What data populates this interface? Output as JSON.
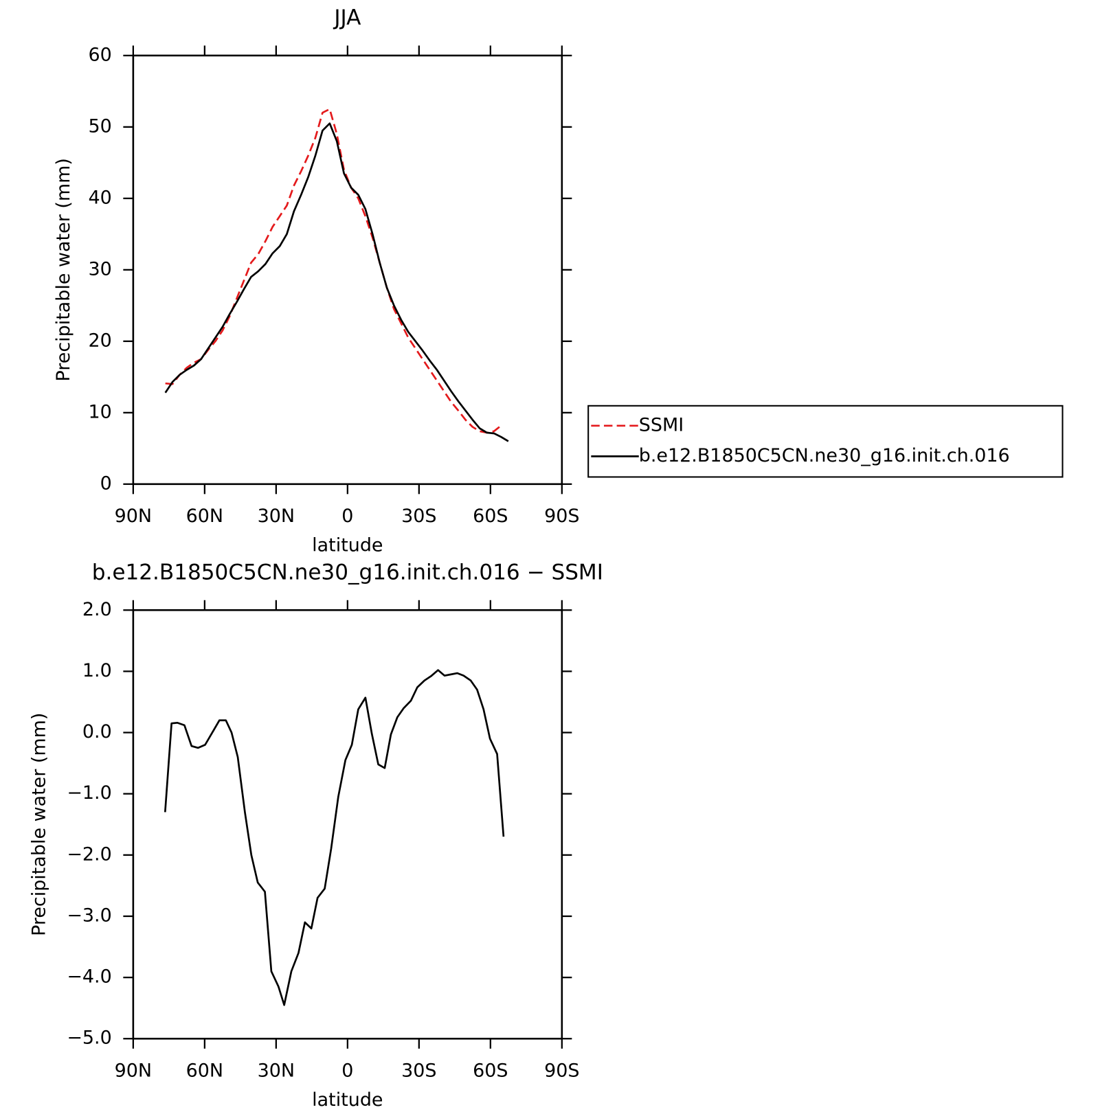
{
  "chart_data": [
    {
      "type": "line",
      "title": "JJA",
      "xlabel": "latitude",
      "ylabel": "Precipitable water (mm)",
      "x": [
        76.5,
        73.5,
        70.5,
        67.5,
        64.5,
        61.5,
        58.5,
        55.5,
        52.5,
        49.5,
        46.5,
        43.5,
        40.5,
        37.5,
        34.5,
        31.5,
        28.5,
        25.5,
        22.5,
        19.5,
        16.5,
        13.5,
        10.5,
        7.5,
        4.5,
        1.5,
        -1.5,
        -4.5,
        -7.5,
        -10.5,
        -13.5,
        -16.5,
        -19.5,
        -22.5,
        -25.5,
        -28.5,
        -31.5,
        -34.5,
        -37.5,
        -40.5,
        -43.5,
        -46.5,
        -49.5,
        -52.5,
        -55.5,
        -58.5,
        -61.5,
        -64.5,
        -67.5
      ],
      "series": [
        {
          "name": "SSMI",
          "color": "#e41a1c",
          "dashed": true,
          "values": [
            14.1,
            14.0,
            15.3,
            16.3,
            17.0,
            17.5,
            18.8,
            20.0,
            21.5,
            23.5,
            26.0,
            28.5,
            31.0,
            32.2,
            34.0,
            36.0,
            37.5,
            39.0,
            41.8,
            43.8,
            46.0,
            48.5,
            52.0,
            52.5,
            49.0,
            44.0,
            41.5,
            40.0,
            37.5,
            34.5,
            31.0,
            27.5,
            24.5,
            22.5,
            20.5,
            19.0,
            17.5,
            16.0,
            14.5,
            13.0,
            11.5,
            10.3,
            9.0,
            8.0,
            7.4,
            7.2,
            7.4,
            8.2,
            null
          ]
        },
        {
          "name": "b.e12.B1850C5CN.ne30_g16.init.ch.016",
          "color": "#000000",
          "dashed": false,
          "values": [
            12.8,
            14.3,
            15.3,
            16.0,
            16.6,
            17.5,
            19.0,
            20.5,
            22.0,
            23.8,
            25.5,
            27.3,
            29.0,
            29.8,
            30.8,
            32.3,
            33.3,
            35.0,
            38.2,
            40.5,
            43.0,
            46.0,
            49.5,
            50.5,
            48.0,
            43.5,
            41.5,
            40.5,
            38.5,
            35.0,
            31.0,
            27.5,
            25.0,
            23.0,
            21.3,
            20.0,
            18.7,
            17.3,
            16.0,
            14.5,
            13.0,
            11.6,
            10.3,
            9.0,
            7.8,
            7.2,
            7.1,
            6.6,
            6.0
          ]
        }
      ],
      "xlim": [
        90,
        -90
      ],
      "xticks": [
        {
          "value": 90,
          "label": "90N"
        },
        {
          "value": 60,
          "label": "60N"
        },
        {
          "value": 30,
          "label": "30N"
        },
        0,
        {
          "value": -30,
          "label": "30S"
        },
        {
          "value": -60,
          "label": "60S"
        },
        {
          "value": -90,
          "label": "90S"
        }
      ],
      "ylim": [
        0,
        60
      ],
      "yticks": [
        0,
        10,
        20,
        30,
        40,
        50,
        60
      ],
      "legend": "outside-right"
    },
    {
      "type": "line",
      "title": "b.e12.B1850C5CN.ne30_g16.init.ch.016 − SSMI",
      "xlabel": "latitude",
      "ylabel": "Precipitable water (mm)",
      "x": [
        76.6,
        73.9,
        71.5,
        68.5,
        65.5,
        62.8,
        59.8,
        56.5,
        53.8,
        51.1,
        48.7,
        46.1,
        43.1,
        40.4,
        37.7,
        34.7,
        32.0,
        29.0,
        26.6,
        23.6,
        20.6,
        17.9,
        15.2,
        12.6,
        9.6,
        6.9,
        3.9,
        0.9,
        -1.8,
        -4.5,
        -7.5,
        -10.2,
        -12.9,
        -15.6,
        -18.2,
        -20.9,
        -23.6,
        -26.6,
        -29.3,
        -32.3,
        -35.0,
        -38.0,
        -40.7,
        -43.4,
        -46.1,
        -48.7,
        -51.7,
        -54.4,
        -57.1,
        -59.8,
        -62.8,
        -65.5
      ],
      "series": [
        {
          "name": "b.e12.B1850C5CN.ne30_g16.init.ch.016",
          "color": "#000000",
          "dashed": false,
          "values": [
            -1.3,
            0.15,
            0.16,
            0.12,
            -0.22,
            -0.25,
            -0.2,
            0.02,
            0.2,
            0.2,
            0.0,
            -0.4,
            -1.3,
            -2.0,
            -2.45,
            -2.6,
            -3.9,
            -4.15,
            -4.45,
            -3.9,
            -3.6,
            -3.1,
            -3.2,
            -2.7,
            -2.55,
            -1.9,
            -1.05,
            -0.45,
            -0.2,
            0.38,
            0.57,
            -0.02,
            -0.52,
            -0.58,
            -0.03,
            0.25,
            0.4,
            0.52,
            0.74,
            0.85,
            0.92,
            1.02,
            0.93,
            0.95,
            0.97,
            0.93,
            0.85,
            0.7,
            0.38,
            -0.1,
            -0.35,
            -1.7
          ]
        }
      ],
      "xlim": [
        90,
        -90
      ],
      "xticks": [
        {
          "value": 90,
          "label": "90N"
        },
        {
          "value": 60,
          "label": "60N"
        },
        {
          "value": 30,
          "label": "30N"
        },
        0,
        {
          "value": -30,
          "label": "30S"
        },
        {
          "value": -60,
          "label": "60S"
        },
        {
          "value": -90,
          "label": "90S"
        }
      ],
      "ylim": [
        -5,
        2
      ],
      "yticks": [
        {
          "value": -5,
          "label": "−5.0"
        },
        {
          "value": -4,
          "label": "−4.0"
        },
        {
          "value": -3,
          "label": "−3.0"
        },
        {
          "value": -2,
          "label": "−2.0"
        },
        {
          "value": -1,
          "label": "−1.0"
        },
        {
          "value": 0,
          "label": "0.0"
        },
        {
          "value": 1,
          "label": "1.0"
        },
        {
          "value": 2,
          "label": "2.0"
        }
      ]
    }
  ]
}
